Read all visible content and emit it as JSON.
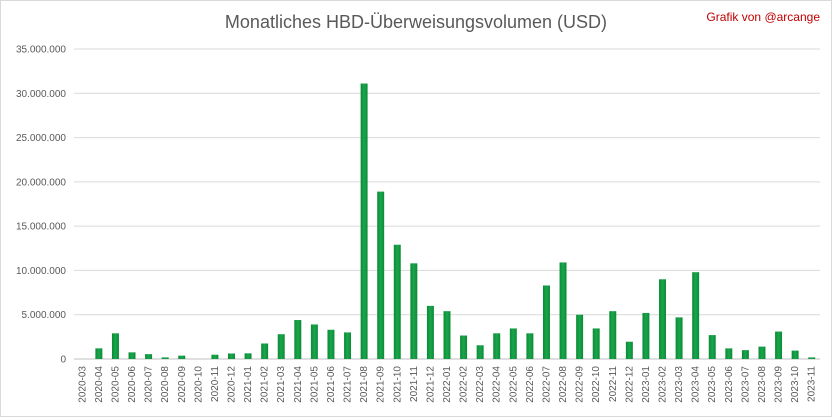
{
  "chart_data": {
    "type": "bar",
    "title": "Monatliches HBD-Überweisungsvolumen (USD)",
    "credit": "Grafik von @arcange",
    "xlabel": "",
    "ylabel": "",
    "ylim": [
      0,
      35000000
    ],
    "yticks": [
      0,
      5000000,
      10000000,
      15000000,
      20000000,
      25000000,
      30000000,
      35000000
    ],
    "ytick_labels": [
      "0",
      "5.000.000",
      "10.000.000",
      "15.000.000",
      "20.000.000",
      "25.000.000",
      "30.000.000",
      "35.000.000"
    ],
    "grid": true,
    "legend": "none",
    "bar_color": "#1aa64a",
    "categories": [
      "2020-03",
      "2020-04",
      "2020-05",
      "2020-06",
      "2020-07",
      "2020-08",
      "2020-09",
      "2020-10",
      "2020-11",
      "2020-12",
      "2021-01",
      "2021-02",
      "2021-03",
      "2021-04",
      "2021-05",
      "2021-06",
      "2021-07",
      "2021-08",
      "2021-09",
      "2021-10",
      "2021-11",
      "2021-12",
      "2022-01",
      "2022-02",
      "2022-03",
      "2022-04",
      "2022-05",
      "2022-06",
      "2022-07",
      "2022-08",
      "2022-09",
      "2022-10",
      "2022-11",
      "2022-12",
      "2023-01",
      "2023-02",
      "2023-03",
      "2023-04",
      "2023-05",
      "2023-06",
      "2023-07",
      "2023-08",
      "2023-09",
      "2023-10",
      "2023-11"
    ],
    "values": [
      0,
      1200000,
      2900000,
      750000,
      550000,
      180000,
      380000,
      0,
      480000,
      620000,
      640000,
      1750000,
      2800000,
      4400000,
      3900000,
      3300000,
      3000000,
      31100000,
      18900000,
      12900000,
      10800000,
      6000000,
      5400000,
      2650000,
      1550000,
      2900000,
      3450000,
      2900000,
      8300000,
      10900000,
      5000000,
      3450000,
      5400000,
      1950000,
      5200000,
      9000000,
      4700000,
      9800000,
      2700000,
      1200000,
      1000000,
      1400000,
      3100000,
      950000,
      180000
    ]
  }
}
